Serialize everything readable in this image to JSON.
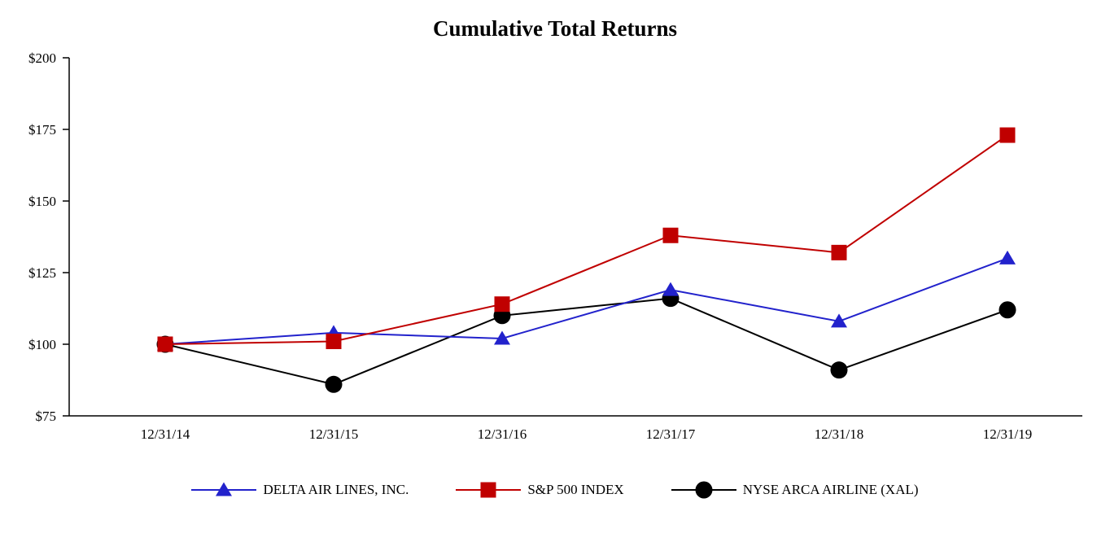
{
  "chart_data": {
    "type": "line",
    "title": "Cumulative Total Returns",
    "x": [
      "12/31/14",
      "12/31/15",
      "12/31/16",
      "12/31/17",
      "12/31/18",
      "12/31/19"
    ],
    "xlabel": "",
    "ylabel": "",
    "ylim": [
      75,
      200
    ],
    "y_ticks": [
      75,
      100,
      125,
      150,
      175,
      200
    ],
    "y_tick_labels": [
      "$75",
      "$100",
      "$125",
      "$150",
      "$175",
      "$200"
    ],
    "grid": false,
    "legend_position": "bottom",
    "axis_color": "#000000",
    "series": [
      {
        "name": "DELTA AIR LINES, INC.",
        "marker": "triangle",
        "color": "#2222cc",
        "values": [
          100,
          104,
          102,
          119,
          108,
          130
        ]
      },
      {
        "name": "S&P 500 INDEX",
        "marker": "square",
        "color": "#c00000",
        "values": [
          100,
          101,
          114,
          138,
          132,
          173
        ]
      },
      {
        "name": "NYSE ARCA AIRLINE (XAL)",
        "marker": "circle",
        "color": "#000000",
        "values": [
          100,
          86,
          110,
          116,
          91,
          112
        ]
      }
    ]
  }
}
